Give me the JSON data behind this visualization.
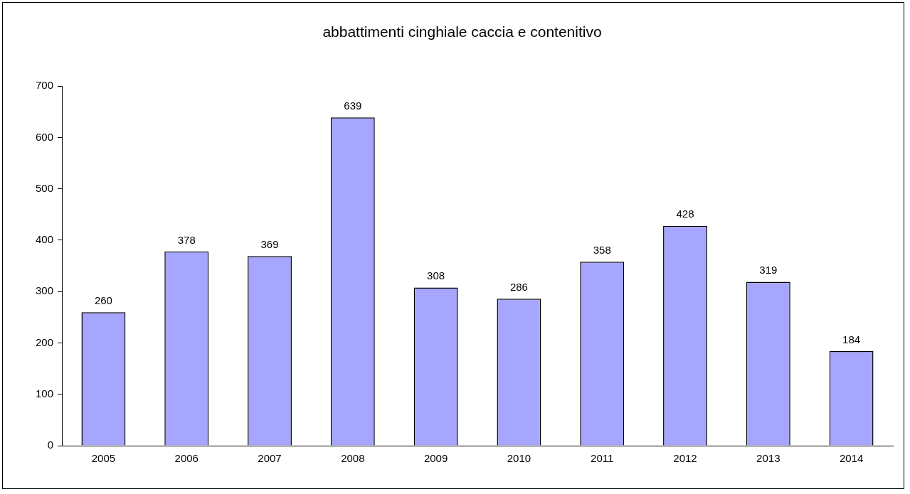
{
  "chart_data": {
    "type": "bar",
    "title": "abbattimenti cinghiale caccia e contenitivo",
    "categories": [
      "2005",
      "2006",
      "2007",
      "2008",
      "2009",
      "2010",
      "2011",
      "2012",
      "2013",
      "2014"
    ],
    "values": [
      260,
      378,
      369,
      639,
      308,
      286,
      358,
      428,
      319,
      184
    ],
    "color": "#a6a6ff",
    "ylim": [
      0,
      700
    ],
    "yticks": [
      0,
      100,
      200,
      300,
      400,
      500,
      600,
      700
    ],
    "grid": false,
    "legend": false,
    "data_labels": true
  }
}
